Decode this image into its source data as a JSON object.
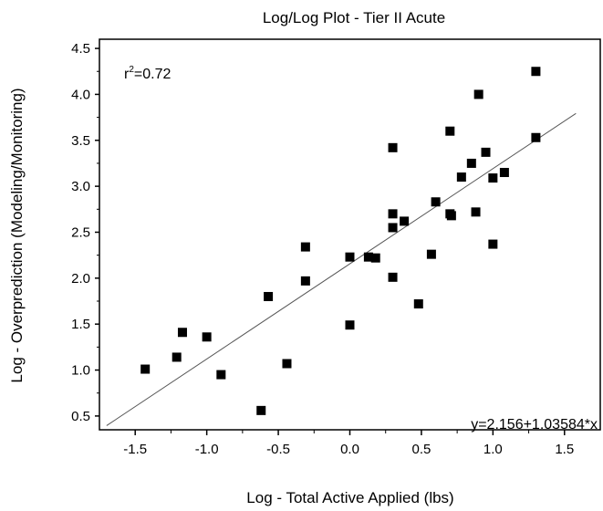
{
  "chart_data": {
    "type": "scatter",
    "title": "Log/Log Plot - Tier II Acute",
    "xlabel": "Log - Total Active Applied (lbs)",
    "ylabel": "Log - Overprediction (Modeling/Monitoring)",
    "xlim": [
      -1.75,
      1.75
    ],
    "ylim": [
      0.35,
      4.6
    ],
    "xticks": [
      "-1.5",
      "-1.0",
      "-0.5",
      "0.0",
      "0.5",
      "1.0",
      "1.5"
    ],
    "yticks": [
      "0.5",
      "1.0",
      "1.5",
      "2.0",
      "2.5",
      "3.0",
      "3.5",
      "4.0",
      "4.5"
    ],
    "grid": false,
    "r2_label": "r",
    "r2_sup": "2",
    "r2_value": "=0.72",
    "equation": "y=2.156+1.03584*x",
    "fit": {
      "intercept": 2.156,
      "slope": 1.03584,
      "x_range": [
        -1.7,
        1.58
      ]
    },
    "points": [
      [
        -1.43,
        1.01
      ],
      [
        -1.21,
        1.14
      ],
      [
        -1.17,
        1.41
      ],
      [
        -1.0,
        1.36
      ],
      [
        -0.9,
        0.95
      ],
      [
        -0.62,
        0.56
      ],
      [
        -0.57,
        1.8
      ],
      [
        -0.44,
        1.07
      ],
      [
        -0.31,
        2.34
      ],
      [
        -0.31,
        1.97
      ],
      [
        0.0,
        2.23
      ],
      [
        0.0,
        1.49
      ],
      [
        0.13,
        2.23
      ],
      [
        0.18,
        2.22
      ],
      [
        0.3,
        3.42
      ],
      [
        0.3,
        2.7
      ],
      [
        0.3,
        2.55
      ],
      [
        0.3,
        2.01
      ],
      [
        0.38,
        2.62
      ],
      [
        0.48,
        1.72
      ],
      [
        0.57,
        2.26
      ],
      [
        0.6,
        2.83
      ],
      [
        0.7,
        3.6
      ],
      [
        0.7,
        2.7
      ],
      [
        0.71,
        2.68
      ],
      [
        0.78,
        3.1
      ],
      [
        0.85,
        3.25
      ],
      [
        0.88,
        2.72
      ],
      [
        0.9,
        4.0
      ],
      [
        0.95,
        3.37
      ],
      [
        1.0,
        3.09
      ],
      [
        1.0,
        2.37
      ],
      [
        1.08,
        3.15
      ],
      [
        1.3,
        4.25
      ],
      [
        1.3,
        3.53
      ]
    ]
  }
}
